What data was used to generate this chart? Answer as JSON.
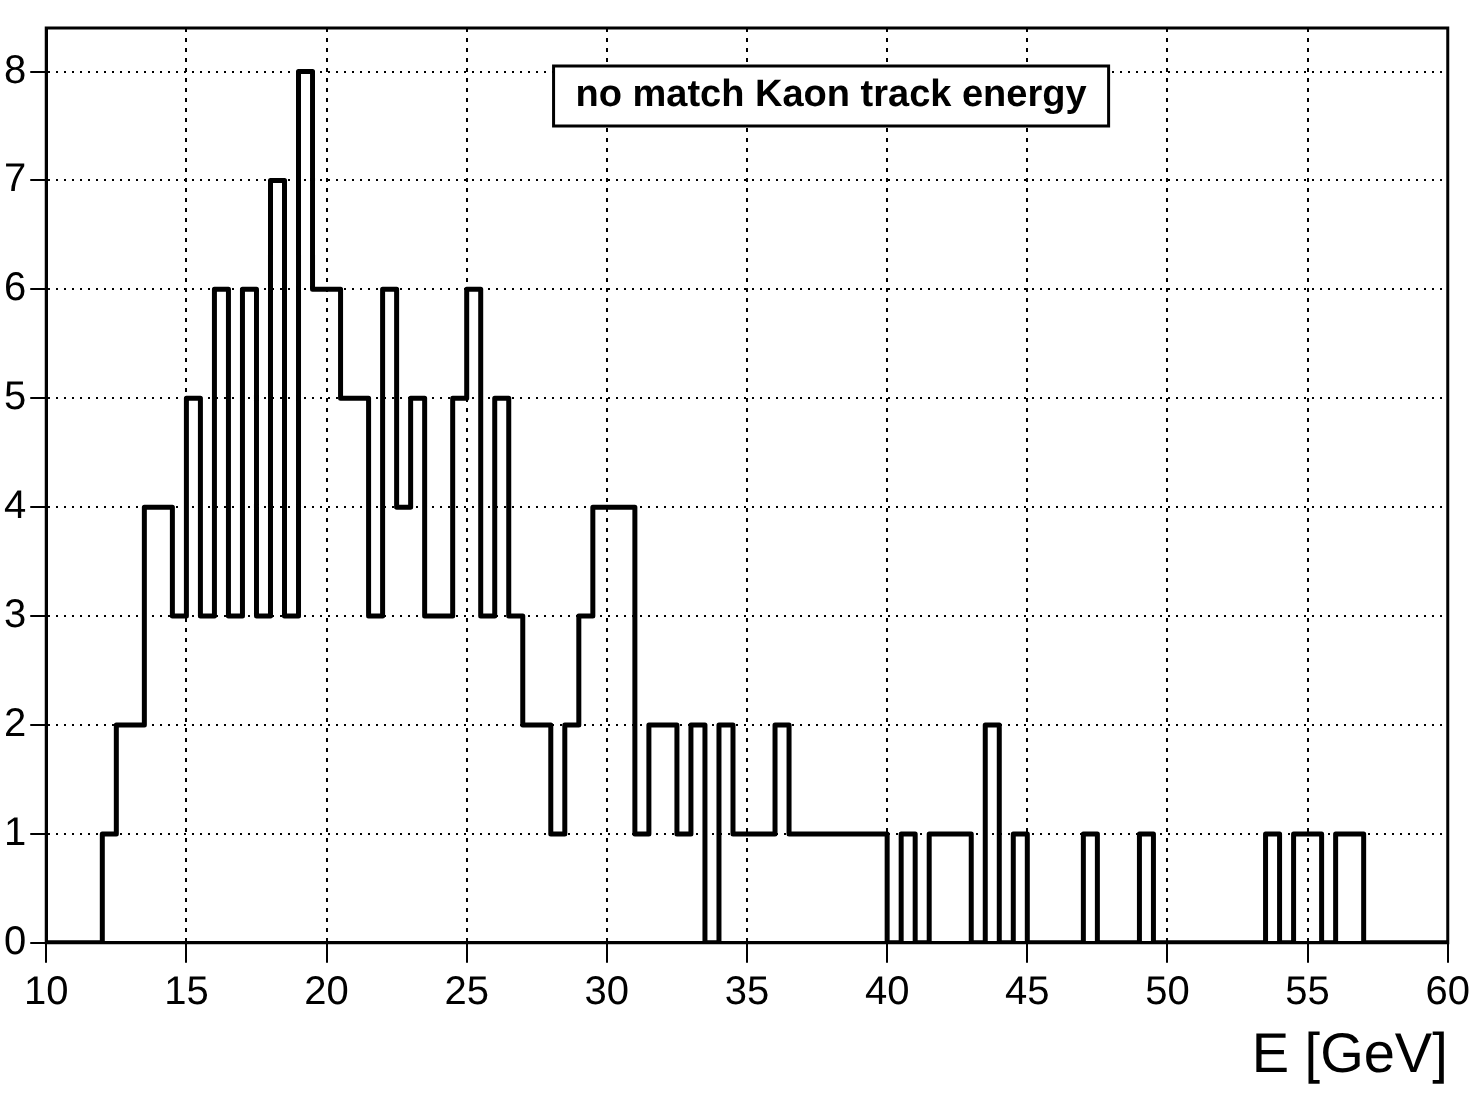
{
  "chart_data": {
    "type": "histogram",
    "title": "no match Kaon track energy",
    "xlabel": "E [GeV]",
    "bins": [
      10,
      10.5,
      11,
      11.5,
      12,
      12.5,
      13,
      13.5,
      14,
      14.5,
      15,
      15.5,
      16,
      16.5,
      17,
      17.5,
      18,
      18.5,
      19,
      19.5,
      20,
      20.5,
      21,
      21.5,
      22,
      22.5,
      23,
      23.5,
      24,
      24.5,
      25,
      25.5,
      26,
      26.5,
      27,
      27.5,
      28,
      28.5,
      29,
      29.5,
      30,
      30.5,
      31,
      31.5,
      32,
      32.5,
      33,
      33.5,
      34,
      34.5,
      35,
      35.5,
      36,
      36.5,
      37,
      37.5,
      38,
      38.5,
      39,
      39.5,
      40,
      40.5,
      41,
      41.5,
      42,
      42.5,
      43,
      43.5,
      44,
      44.5,
      45,
      45.5,
      46,
      46.5,
      47,
      47.5,
      48,
      48.5,
      49,
      49.5,
      50,
      50.5,
      51,
      51.5,
      52,
      52.5,
      53,
      53.5,
      54,
      54.5,
      55,
      55.5,
      56,
      56.5,
      57,
      57.5,
      58,
      58.5,
      59,
      59.5,
      60
    ],
    "values": [
      0,
      0,
      0,
      0,
      1,
      2,
      2,
      4,
      4,
      3,
      5,
      3,
      6,
      3,
      6,
      3,
      7,
      3,
      8,
      6,
      6,
      5,
      5,
      3,
      6,
      4,
      5,
      3,
      3,
      5,
      6,
      3,
      5,
      3,
      2,
      2,
      1,
      2,
      3,
      4,
      4,
      4,
      1,
      2,
      2,
      1,
      2,
      0,
      2,
      1,
      1,
      1,
      2,
      1,
      1,
      1,
      1,
      1,
      1,
      1,
      0,
      1,
      0,
      1,
      1,
      1,
      0,
      2,
      0,
      1,
      0,
      0,
      0,
      0,
      1,
      0,
      0,
      0,
      1,
      0,
      0,
      0,
      0,
      0,
      0,
      0,
      0,
      1,
      0,
      1,
      1,
      0,
      1,
      1,
      0,
      0,
      0,
      0,
      0,
      0
    ],
    "color": "#000000",
    "xlim": [
      10,
      60
    ],
    "xticks": [
      10,
      15,
      20,
      25,
      30,
      35,
      40,
      45,
      50,
      55,
      60
    ],
    "ylim": [
      0,
      8.4
    ],
    "yticks": [
      0,
      1,
      2,
      3,
      4,
      5,
      6,
      7,
      8
    ],
    "grid": true,
    "legend": false
  }
}
